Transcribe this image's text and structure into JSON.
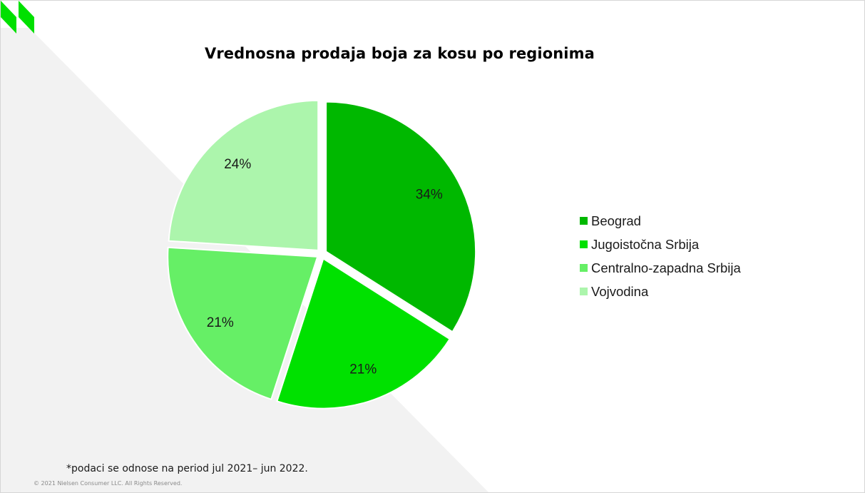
{
  "chart_data": {
    "type": "pie",
    "title": "Vrednosna prodaja boja za kosu po regionima",
    "categories": [
      "Beograd",
      "Jugoistočna Srbija",
      "Centralno-zapadna Srbija",
      "Vojvodina"
    ],
    "values": [
      34,
      21,
      21,
      24
    ],
    "value_labels": [
      "34%",
      "21%",
      "21%",
      "24%"
    ],
    "colors": [
      "#00b800",
      "#00e100",
      "#66ef66",
      "#acf5ac"
    ],
    "legend_position": "right",
    "exploded": true
  },
  "footnote": "*podaci se odnose na period jul 2021– jun 2022.",
  "copyright": "© 2021 Nielsen Consumer LLC. All Rights Reserved.",
  "colors": {
    "background_shape": "#f2f2f2",
    "logo": "#00e000"
  }
}
